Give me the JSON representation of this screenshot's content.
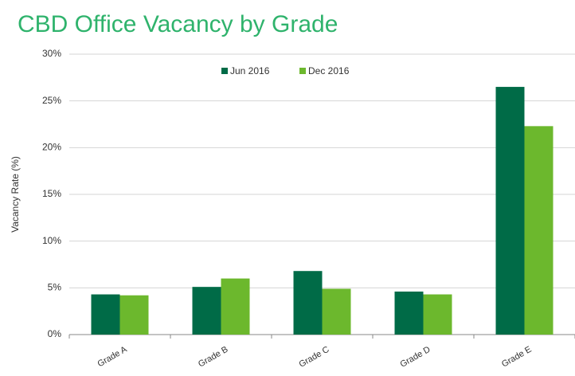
{
  "chart_data": {
    "type": "bar",
    "title": "CBD Office Vacancy by Grade",
    "ylabel": "Vacancy Rate (%)",
    "categories": [
      "Grade A",
      "Grade B",
      "Grade C",
      "Grade D",
      "Grade E"
    ],
    "series": [
      {
        "name": "Jun 2016",
        "color": "#006b47",
        "values": [
          4.3,
          5.1,
          6.8,
          4.6,
          26.5
        ]
      },
      {
        "name": "Dec 2016",
        "color": "#6cb82d",
        "values": [
          4.2,
          6.0,
          4.9,
          4.3,
          22.3
        ]
      }
    ],
    "ylim": [
      0,
      30
    ],
    "yticks": [
      {
        "value": 0,
        "label": "0%"
      },
      {
        "value": 5,
        "label": "5%"
      },
      {
        "value": 10,
        "label": "10%"
      },
      {
        "value": 15,
        "label": "15%"
      },
      {
        "value": 20,
        "label": "20%"
      },
      {
        "value": 25,
        "label": "25%"
      },
      {
        "value": 30,
        "label": "30%"
      }
    ],
    "grid": true,
    "legend": "top"
  }
}
